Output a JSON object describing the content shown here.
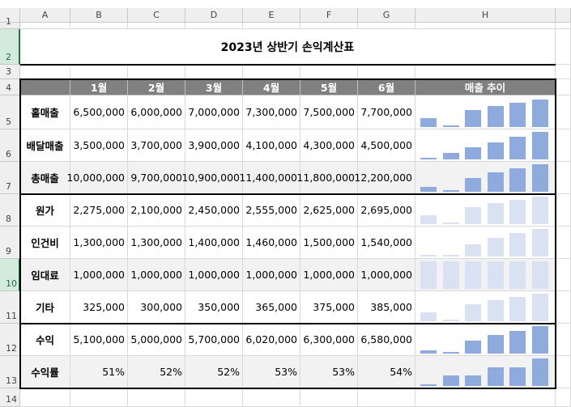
{
  "columns": [
    "A",
    "B",
    "C",
    "D",
    "E",
    "F",
    "G",
    "H"
  ],
  "row_numbers": [
    "1",
    "2",
    "3",
    "4",
    "5",
    "6",
    "7",
    "8",
    "9",
    "10",
    "11",
    "12",
    "13",
    "14"
  ],
  "title": "2023년 상반기 손익계산표",
  "table": {
    "header": [
      "1월",
      "2월",
      "3월",
      "4월",
      "5월",
      "6월",
      "매출 추이"
    ],
    "rows": [
      [
        "홀매출",
        "6,500,000",
        "6,000,000",
        "7,000,000",
        "7,300,000",
        "7,500,000",
        "7,700,000"
      ],
      [
        "배달매출",
        "3,500,000",
        "3,700,000",
        "3,900,000",
        "4,100,000",
        "4,300,000",
        "4,500,000"
      ],
      [
        "총매출",
        "10,000,000",
        "9,700,000",
        "10,900,000",
        "11,400,000",
        "11,800,000",
        "12,200,000"
      ],
      [
        "원가",
        "2,275,000",
        "2,100,000",
        "2,450,000",
        "2,555,000",
        "2,625,000",
        "2,695,000"
      ],
      [
        "인건비",
        "1,300,000",
        "1,300,000",
        "1,400,000",
        "1,460,000",
        "1,500,000",
        "1,540,000"
      ],
      [
        "임대료",
        "1,000,000",
        "1,000,000",
        "1,000,000",
        "1,000,000",
        "1,000,000",
        "1,000,000"
      ],
      [
        "기타",
        "325,000",
        "300,000",
        "350,000",
        "365,000",
        "375,000",
        "385,000"
      ],
      [
        "수익",
        "5,100,000",
        "5,000,000",
        "5,700,000",
        "6,020,000",
        "6,300,000",
        "6,580,000"
      ],
      [
        "수익률",
        "51%",
        "52%",
        "52%",
        "53%",
        "53%",
        "54%"
      ]
    ]
  }
}
